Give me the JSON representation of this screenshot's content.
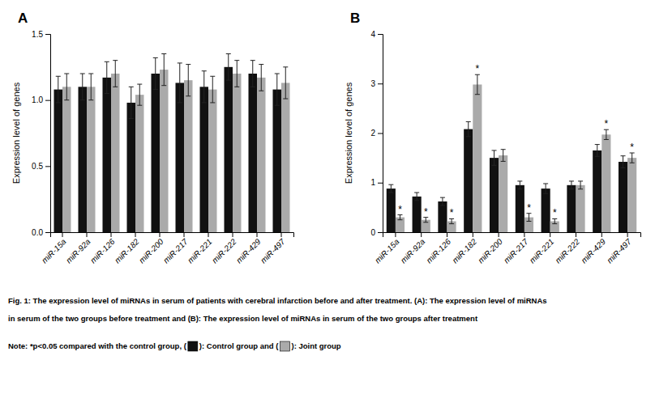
{
  "chart_data": [
    {
      "type": "bar",
      "title": "A",
      "ylabel": "Expression level of genes",
      "categories": [
        "miR-15a",
        "miR-92a",
        "miR-126",
        "miR-182",
        "miR-200",
        "miR-217",
        "miR-221",
        "miR-222",
        "miR-429",
        "miR-497"
      ],
      "series": [
        {
          "color": "#111111",
          "values": [
            1.08,
            1.1,
            1.17,
            0.98,
            1.2,
            1.13,
            1.1,
            1.25,
            1.2,
            1.08
          ],
          "errors": [
            0.1,
            0.1,
            0.12,
            0.12,
            0.12,
            0.15,
            0.12,
            0.1,
            0.1,
            0.12
          ]
        },
        {
          "color": "#aaaaaa",
          "values": [
            1.1,
            1.1,
            1.2,
            1.04,
            1.23,
            1.15,
            1.08,
            1.2,
            1.17,
            1.13
          ],
          "errors": [
            0.1,
            0.1,
            0.1,
            0.08,
            0.12,
            0.12,
            0.1,
            0.1,
            0.1,
            0.12
          ]
        }
      ],
      "ylim": [
        0.0,
        1.5
      ],
      "yticks": [
        {
          "value": 0.0,
          "label": "0.0"
        },
        {
          "value": 0.5,
          "label": "0.5"
        },
        {
          "value": 1.0,
          "label": "1.0"
        },
        {
          "value": 1.5,
          "label": "1.5"
        }
      ],
      "grid": false,
      "annotations": [
        "Fig. 1: The expression level of miRNAs in serum of patients with cerebral infarction before and after treatment. (A): The expression level of miRNAs",
        "in serum of the two groups before treatment and (B): The expression level of miRNAs in serum of the two groups after treatment",
        "Note: *p<0.05 compared with the control group, (",
        "): Control group and (",
        "): Joint group"
      ]
    },
    {
      "type": "bar",
      "title": "B",
      "ylabel": "Expression level of genes",
      "categories": [
        "miR-15a",
        "miR-92a",
        "miR-126",
        "miR-182",
        "miR-200",
        "miR-217",
        "miR-221",
        "miR-222",
        "miR-429",
        "miR-497"
      ],
      "series": [
        {
          "color": "#111111",
          "values": [
            0.88,
            0.72,
            0.62,
            2.08,
            1.5,
            0.95,
            0.88,
            0.95,
            1.65,
            1.42
          ],
          "errors": [
            0.08,
            0.08,
            0.08,
            0.15,
            0.15,
            0.08,
            0.1,
            0.08,
            0.12,
            0.12
          ]
        },
        {
          "color": "#aaaaaa",
          "values": [
            0.3,
            0.25,
            0.22,
            2.98,
            1.55,
            0.3,
            0.22,
            0.95,
            1.97,
            1.5
          ],
          "errors": [
            0.05,
            0.05,
            0.05,
            0.2,
            0.12,
            0.08,
            0.05,
            0.08,
            0.1,
            0.1
          ],
          "annotations": [
            "*",
            "*",
            "*",
            "*",
            null,
            "*",
            "*",
            null,
            "*",
            "*"
          ]
        }
      ],
      "ylim": [
        0,
        4
      ],
      "yticks": [
        0,
        1,
        2,
        3,
        4
      ],
      "grid": false
    }
  ]
}
